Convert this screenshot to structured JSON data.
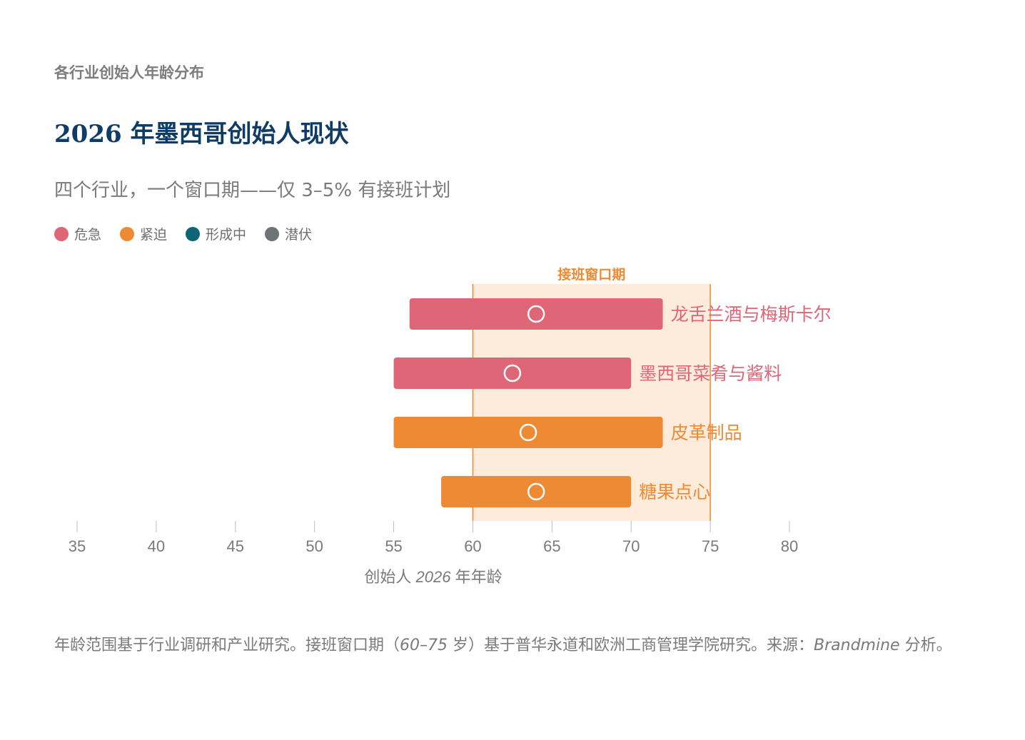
{
  "eyebrow": "各行业创始人年龄分布",
  "title": "2026 年墨西哥创始人现状",
  "subtitle": "四个行业，一个窗口期——仅 3–5% 有接班计划",
  "legend": [
    {
      "label": "危急",
      "color": "#df6677"
    },
    {
      "label": "紧迫",
      "color": "#ee8a33"
    },
    {
      "label": "形成中",
      "color": "#0d6576"
    },
    {
      "label": "潜伏",
      "color": "#6f7374"
    }
  ],
  "chart_data": {
    "type": "range-bar",
    "window_label": "接班窗口期",
    "window": [
      60,
      75
    ],
    "xlabel_prefix": "创始人 ",
    "xlabel_year": "2026",
    "xlabel_suffix": " 年年龄",
    "xlim": [
      35,
      80
    ],
    "ticks": [
      35,
      40,
      45,
      50,
      55,
      60,
      65,
      70,
      75,
      80
    ],
    "rows": [
      {
        "name": "龙舌兰酒与梅斯卡尔",
        "min": 56,
        "max": 72,
        "median": 64,
        "status": "危急",
        "color": "#df6677"
      },
      {
        "name": "墨西哥菜肴与酱料",
        "min": 55,
        "max": 70,
        "median": 62.5,
        "status": "危急",
        "color": "#df6677"
      },
      {
        "name": "皮革制品",
        "min": 55,
        "max": 72,
        "median": 63.5,
        "status": "紧迫",
        "color": "#ee8a33"
      },
      {
        "name": "糖果点心",
        "min": 58,
        "max": 70,
        "median": 64,
        "status": "紧迫",
        "color": "#ee8a33"
      }
    ]
  },
  "footnote": {
    "part1": "年龄范围基于行业调研和产业研究。接班窗口期（",
    "range": "60–75",
    "part2": " 岁）基于普华永道和欧洲工商管理学院研究。来源：",
    "source": "Brandmine",
    "part3": " 分析。"
  }
}
